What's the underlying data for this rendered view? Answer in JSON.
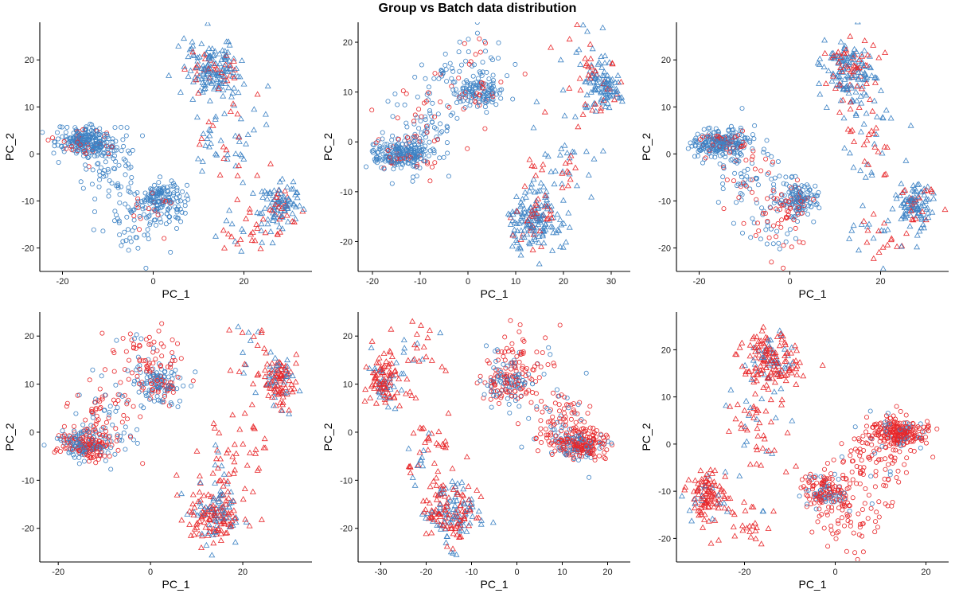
{
  "title": "Group vs Batch data distribution",
  "colors": {
    "red": "#e8272a",
    "blue": "#3d82c4"
  },
  "chart_data": [
    {
      "type": "scatter",
      "xlabel": "PC_1",
      "ylabel": "PC_2",
      "xlim": [
        -25,
        35
      ],
      "ylim": [
        -25,
        28
      ],
      "xticks": [
        -20,
        0,
        20
      ],
      "yticks": [
        -20,
        -10,
        0,
        10,
        20
      ],
      "grid": false,
      "clusters": [
        {
          "cx": -15,
          "cy": 2.5,
          "sx": 3.0,
          "sy": 1.5,
          "n": 240,
          "shape": "circle",
          "red": 0.1
        },
        {
          "cx": -10,
          "cy": -3,
          "sx": 3.5,
          "sy": 4,
          "n": 80,
          "shape": "circle",
          "red": 0.1
        },
        {
          "cx": 2,
          "cy": -10,
          "sx": 2.5,
          "sy": 2,
          "n": 140,
          "shape": "circle",
          "red": 0.1
        },
        {
          "cx": -3,
          "cy": -14,
          "sx": 4,
          "sy": 4,
          "n": 70,
          "shape": "circle",
          "red": 0.15
        },
        {
          "cx": 13,
          "cy": 18,
          "sx": 3,
          "sy": 3,
          "n": 160,
          "shape": "triangle",
          "red": 0.2
        },
        {
          "cx": 17,
          "cy": 5,
          "sx": 4,
          "sy": 6,
          "n": 60,
          "shape": "triangle",
          "red": 0.3
        },
        {
          "cx": 28,
          "cy": -11,
          "sx": 2,
          "sy": 2.5,
          "n": 110,
          "shape": "triangle",
          "red": 0.2
        },
        {
          "cx": 20,
          "cy": -17,
          "sx": 3,
          "sy": 3,
          "n": 30,
          "shape": "triangle",
          "red": 0.5
        }
      ]
    },
    {
      "type": "scatter",
      "xlabel": "PC_1",
      "ylabel": "PC_2",
      "xlim": [
        -23,
        34
      ],
      "ylim": [
        -26,
        24
      ],
      "xticks": [
        -20,
        -10,
        0,
        10,
        20,
        30
      ],
      "yticks": [
        -20,
        -10,
        0,
        10,
        20
      ],
      "grid": false,
      "clusters": [
        {
          "cx": -14,
          "cy": -2.5,
          "sx": 3,
          "sy": 1.5,
          "n": 230,
          "shape": "circle",
          "red": 0.15
        },
        {
          "cx": -9,
          "cy": 4,
          "sx": 4,
          "sy": 4,
          "n": 90,
          "shape": "circle",
          "red": 0.25
        },
        {
          "cx": 2,
          "cy": 10,
          "sx": 2.5,
          "sy": 2,
          "n": 130,
          "shape": "circle",
          "red": 0.1
        },
        {
          "cx": -1,
          "cy": 15,
          "sx": 4,
          "sy": 3.5,
          "n": 60,
          "shape": "circle",
          "red": 0.35
        },
        {
          "cx": 14,
          "cy": -16,
          "sx": 3,
          "sy": 3,
          "n": 170,
          "shape": "triangle",
          "red": 0.2
        },
        {
          "cx": 19,
          "cy": -5,
          "sx": 4,
          "sy": 5,
          "n": 50,
          "shape": "triangle",
          "red": 0.4
        },
        {
          "cx": 28,
          "cy": 11,
          "sx": 2,
          "sy": 2.5,
          "n": 110,
          "shape": "triangle",
          "red": 0.2
        },
        {
          "cx": 23,
          "cy": 16,
          "sx": 3,
          "sy": 4,
          "n": 25,
          "shape": "triangle",
          "red": 0.5
        }
      ]
    },
    {
      "type": "scatter",
      "xlabel": "PC_1",
      "ylabel": "PC_2",
      "xlim": [
        -25,
        35
      ],
      "ylim": [
        -25,
        28
      ],
      "xticks": [
        -20,
        0,
        20
      ],
      "yticks": [
        -20,
        -10,
        0,
        10,
        20
      ],
      "grid": false,
      "clusters": [
        {
          "cx": -15,
          "cy": 2.5,
          "sx": 3,
          "sy": 1.5,
          "n": 240,
          "shape": "circle",
          "red": 0.15
        },
        {
          "cx": -10,
          "cy": -3,
          "sx": 3.5,
          "sy": 4,
          "n": 80,
          "shape": "circle",
          "red": 0.3
        },
        {
          "cx": 2,
          "cy": -10,
          "sx": 2.5,
          "sy": 2,
          "n": 140,
          "shape": "circle",
          "red": 0.15
        },
        {
          "cx": -3,
          "cy": -14,
          "sx": 4,
          "sy": 4,
          "n": 70,
          "shape": "circle",
          "red": 0.5
        },
        {
          "cx": 13,
          "cy": 18,
          "sx": 3,
          "sy": 3,
          "n": 160,
          "shape": "triangle",
          "red": 0.3
        },
        {
          "cx": 17,
          "cy": 5,
          "sx": 4,
          "sy": 6,
          "n": 60,
          "shape": "triangle",
          "red": 0.4
        },
        {
          "cx": 28,
          "cy": -11,
          "sx": 2,
          "sy": 2.5,
          "n": 110,
          "shape": "triangle",
          "red": 0.25
        },
        {
          "cx": 20,
          "cy": -17,
          "sx": 3,
          "sy": 3,
          "n": 30,
          "shape": "triangle",
          "red": 0.5
        }
      ]
    },
    {
      "type": "scatter",
      "xlabel": "PC_1",
      "ylabel": "PC_2",
      "xlim": [
        -24,
        35
      ],
      "ylim": [
        -27,
        25
      ],
      "xticks": [
        -20,
        0,
        20
      ],
      "yticks": [
        -20,
        -10,
        0,
        10,
        20
      ],
      "grid": false,
      "clusters": [
        {
          "cx": -14,
          "cy": -2.5,
          "sx": 3,
          "sy": 1.5,
          "n": 240,
          "shape": "circle",
          "red": 0.5
        },
        {
          "cx": -9,
          "cy": 4,
          "sx": 4,
          "sy": 4,
          "n": 90,
          "shape": "circle",
          "red": 0.5
        },
        {
          "cx": 2,
          "cy": 10,
          "sx": 2.5,
          "sy": 2,
          "n": 130,
          "shape": "circle",
          "red": 0.35
        },
        {
          "cx": -1,
          "cy": 15,
          "sx": 4,
          "sy": 3.5,
          "n": 70,
          "shape": "circle",
          "red": 0.75
        },
        {
          "cx": 14,
          "cy": -17,
          "sx": 3,
          "sy": 3,
          "n": 170,
          "shape": "triangle",
          "red": 0.65
        },
        {
          "cx": 18,
          "cy": -6,
          "sx": 4,
          "sy": 5,
          "n": 50,
          "shape": "triangle",
          "red": 0.7
        },
        {
          "cx": 28,
          "cy": 11,
          "sx": 2,
          "sy": 2.5,
          "n": 110,
          "shape": "triangle",
          "red": 0.7
        },
        {
          "cx": 22,
          "cy": 16,
          "sx": 3,
          "sy": 4,
          "n": 25,
          "shape": "triangle",
          "red": 0.7
        }
      ]
    },
    {
      "type": "scatter",
      "xlabel": "PC_1",
      "ylabel": "PC_2",
      "xlim": [
        -35,
        25
      ],
      "ylim": [
        -27,
        25
      ],
      "xticks": [
        -30,
        -20,
        -10,
        0,
        10,
        20
      ],
      "yticks": [
        -20,
        -10,
        0,
        10,
        20
      ],
      "grid": false,
      "clusters": [
        {
          "cx": 14,
          "cy": -2.5,
          "sx": 3,
          "sy": 1.5,
          "n": 240,
          "shape": "circle",
          "red": 0.7
        },
        {
          "cx": 9,
          "cy": 4,
          "sx": 4,
          "sy": 4,
          "n": 90,
          "shape": "circle",
          "red": 0.75
        },
        {
          "cx": -2,
          "cy": 10,
          "sx": 2.5,
          "sy": 2,
          "n": 130,
          "shape": "circle",
          "red": 0.5
        },
        {
          "cx": 1,
          "cy": 15,
          "sx": 4,
          "sy": 3.5,
          "n": 70,
          "shape": "circle",
          "red": 0.75
        },
        {
          "cx": -14,
          "cy": -17,
          "sx": 3,
          "sy": 3,
          "n": 170,
          "shape": "triangle",
          "red": 0.55
        },
        {
          "cx": -19,
          "cy": -6,
          "sx": 4,
          "sy": 5,
          "n": 50,
          "shape": "triangle",
          "red": 0.7
        },
        {
          "cx": -29,
          "cy": 11,
          "sx": 2,
          "sy": 2.5,
          "n": 110,
          "shape": "triangle",
          "red": 0.7
        },
        {
          "cx": -22,
          "cy": 16,
          "sx": 3,
          "sy": 4,
          "n": 25,
          "shape": "triangle",
          "red": 0.7
        }
      ]
    },
    {
      "type": "scatter",
      "xlabel": "PC_1",
      "ylabel": "PC_2",
      "xlim": [
        -35,
        25
      ],
      "ylim": [
        -25,
        28
      ],
      "xticks": [
        -20,
        0,
        20
      ],
      "yticks": [
        -20,
        -10,
        0,
        10,
        20
      ],
      "grid": false,
      "clusters": [
        {
          "cx": 14,
          "cy": 2.5,
          "sx": 3,
          "sy": 1.5,
          "n": 240,
          "shape": "circle",
          "red": 0.85
        },
        {
          "cx": 9,
          "cy": -3,
          "sx": 4,
          "sy": 4,
          "n": 90,
          "shape": "circle",
          "red": 0.85
        },
        {
          "cx": -2,
          "cy": -10,
          "sx": 2.5,
          "sy": 2,
          "n": 140,
          "shape": "circle",
          "red": 0.75
        },
        {
          "cx": 3,
          "cy": -15,
          "sx": 4,
          "sy": 4,
          "n": 80,
          "shape": "circle",
          "red": 0.9
        },
        {
          "cx": -14,
          "cy": 18,
          "sx": 3,
          "sy": 3,
          "n": 160,
          "shape": "triangle",
          "red": 0.8
        },
        {
          "cx": -18,
          "cy": 5,
          "sx": 4,
          "sy": 6,
          "n": 60,
          "shape": "triangle",
          "red": 0.8
        },
        {
          "cx": -28,
          "cy": -11,
          "sx": 2,
          "sy": 2.5,
          "n": 110,
          "shape": "triangle",
          "red": 0.8
        },
        {
          "cx": -20,
          "cy": -17,
          "sx": 3,
          "sy": 3,
          "n": 30,
          "shape": "triangle",
          "red": 0.8
        }
      ]
    }
  ]
}
